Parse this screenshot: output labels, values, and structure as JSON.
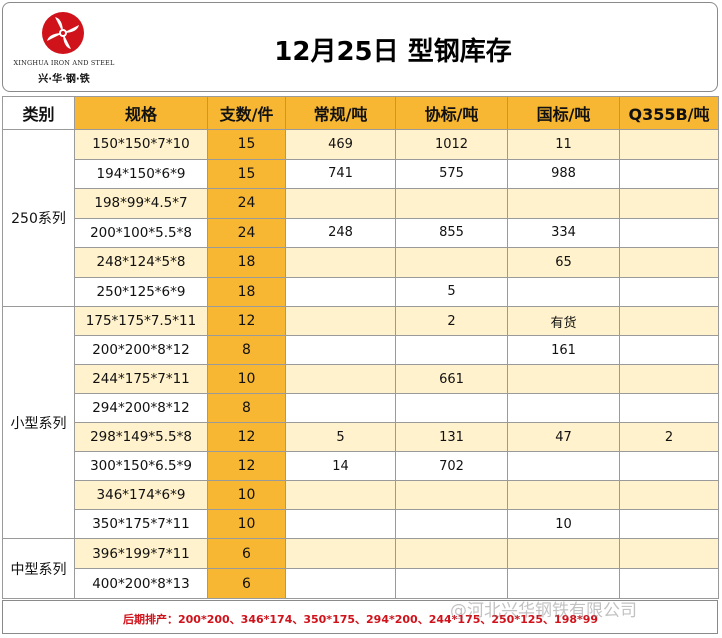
{
  "logo": {
    "en": "XINGHUA IRON AND STEEL",
    "cn": "兴·华·钢·铁"
  },
  "title": "12月25日 型钢库存",
  "columns": [
    "类别",
    "规格",
    "支数/件",
    "常规/吨",
    "协标/吨",
    "国标/吨",
    "Q355B/吨"
  ],
  "groups": [
    {
      "category": "250系列",
      "rows": [
        {
          "spec": "150*150*7*10",
          "qty": "15",
          "regular": "469",
          "association": "1012",
          "national": "11",
          "q355b": ""
        },
        {
          "spec": "194*150*6*9",
          "qty": "15",
          "regular": "741",
          "association": "575",
          "national": "988",
          "q355b": ""
        },
        {
          "spec": "198*99*4.5*7",
          "qty": "24",
          "regular": "",
          "association": "",
          "national": "",
          "q355b": ""
        },
        {
          "spec": "200*100*5.5*8",
          "qty": "24",
          "regular": "248",
          "association": "855",
          "national": "334",
          "q355b": ""
        },
        {
          "spec": "248*124*5*8",
          "qty": "18",
          "regular": "",
          "association": "",
          "national": "65",
          "q355b": ""
        },
        {
          "spec": "250*125*6*9",
          "qty": "18",
          "regular": "",
          "association": "5",
          "national": "",
          "q355b": ""
        }
      ]
    },
    {
      "category": "小型系列",
      "rows": [
        {
          "spec": "175*175*7.5*11",
          "qty": "12",
          "regular": "",
          "association": "2",
          "national": "有货",
          "q355b": ""
        },
        {
          "spec": "200*200*8*12",
          "qty": "8",
          "regular": "",
          "association": "",
          "national": "161",
          "q355b": ""
        },
        {
          "spec": "244*175*7*11",
          "qty": "10",
          "regular": "",
          "association": "661",
          "national": "",
          "q355b": ""
        },
        {
          "spec": "294*200*8*12",
          "qty": "8",
          "regular": "",
          "association": "",
          "national": "",
          "q355b": ""
        },
        {
          "spec": "298*149*5.5*8",
          "qty": "12",
          "regular": "5",
          "association": "131",
          "national": "47",
          "q355b": "2"
        },
        {
          "spec": "300*150*6.5*9",
          "qty": "12",
          "regular": "14",
          "association": "702",
          "national": "",
          "q355b": ""
        },
        {
          "spec": "346*174*6*9",
          "qty": "10",
          "regular": "",
          "association": "",
          "national": "",
          "q355b": ""
        },
        {
          "spec": "350*175*7*11",
          "qty": "10",
          "regular": "",
          "association": "",
          "national": "10",
          "q355b": ""
        }
      ]
    },
    {
      "category": "中型系列",
      "rows": [
        {
          "spec": "396*199*7*11",
          "qty": "6",
          "regular": "",
          "association": "",
          "national": "",
          "q355b": ""
        },
        {
          "spec": "400*200*8*13",
          "qty": "6",
          "regular": "",
          "association": "",
          "national": "",
          "q355b": ""
        }
      ]
    }
  ],
  "footer": "后期排产：200*200、346*174、350*175、294*200、244*175、250*125、198*99",
  "watermark": "@河北兴华钢铁有限公司",
  "colors": {
    "orange": "#f7b733",
    "shade": "#fff2cc",
    "footer_red": "#d0121b",
    "logo_red": "#d0121b"
  }
}
